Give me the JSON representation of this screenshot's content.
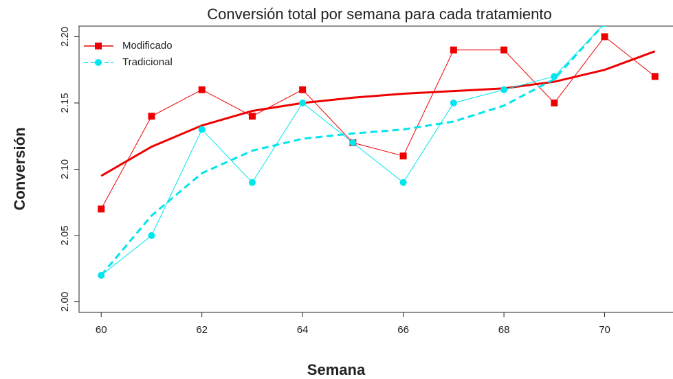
{
  "chart_data": {
    "type": "line",
    "title": "Conversión total  por semana para cada tratamiento",
    "xlabel": "Semana",
    "ylabel": "Conversión",
    "x": [
      60,
      61,
      62,
      63,
      64,
      65,
      66,
      67,
      68,
      69,
      70,
      71
    ],
    "series": [
      {
        "name": "Modificado",
        "color": "#ee0000",
        "marker": "square",
        "dash": false,
        "values": [
          2.07,
          2.14,
          2.16,
          2.14,
          2.16,
          2.12,
          2.11,
          2.19,
          2.19,
          2.15,
          2.2,
          2.17
        ],
        "trend": [
          2.095,
          2.117,
          2.133,
          2.144,
          2.15,
          2.154,
          2.157,
          2.159,
          2.161,
          2.166,
          2.175,
          2.189
        ]
      },
      {
        "name": "Tradicional",
        "color": "#00e5ee",
        "marker": "circle",
        "dash": true,
        "values": [
          2.02,
          2.05,
          2.13,
          2.09,
          2.15,
          2.12,
          2.09,
          2.15,
          2.16,
          2.17,
          2.21,
          null
        ],
        "trend": [
          2.02,
          2.065,
          2.097,
          2.114,
          2.123,
          2.127,
          2.13,
          2.136,
          2.148,
          2.168,
          2.21,
          null
        ]
      }
    ],
    "xlim": [
      59.56,
      71.44
    ],
    "xticks": [
      60,
      62,
      64,
      66,
      68,
      70
    ],
    "ylim": [
      1.992,
      2.208
    ],
    "yticks": [
      {
        "value": 2,
        "label": "2.00"
      },
      2.05,
      {
        "value": 2.1,
        "label": "2.10"
      },
      2.15,
      {
        "value": 2.2,
        "label": "2.20"
      }
    ],
    "legend": "topleft"
  }
}
